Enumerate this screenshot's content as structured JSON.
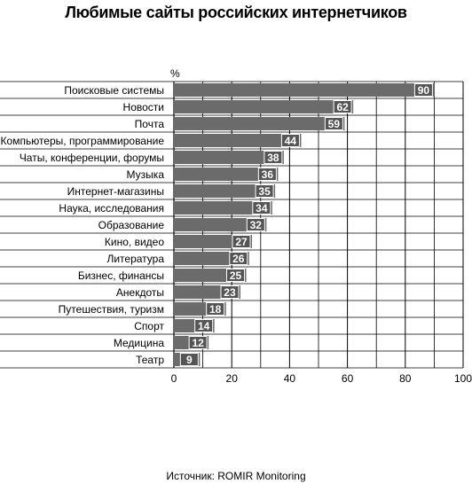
{
  "chart_data": {
    "type": "bar",
    "orientation": "horizontal",
    "title": "Любимые сайты российских интернетчиков",
    "unit_label": "%",
    "source": "Источник: ROMIR Monitoring",
    "categories": [
      "Поисковые системы",
      "Новости",
      "Почта",
      "Компьютеры, программирование",
      "Чаты, конференции, форумы",
      "Музыка",
      "Интернет-магазины",
      "Наука, исследования",
      "Образование",
      "Кино, видео",
      "Литература",
      "Бизнес, финансы",
      "Анекдоты",
      "Путешествия, туризм",
      "Спорт",
      "Медицина",
      "Театр"
    ],
    "values": [
      90,
      62,
      59,
      44,
      38,
      36,
      35,
      34,
      32,
      27,
      26,
      25,
      23,
      18,
      14,
      12,
      9
    ],
    "xlim": [
      0,
      100
    ],
    "xticks": [
      0,
      20,
      40,
      60,
      80,
      100
    ],
    "grid": true,
    "bar_color": "#6b6b6b",
    "label_box_color": "#555555",
    "label_text_color": "#ffffff"
  }
}
